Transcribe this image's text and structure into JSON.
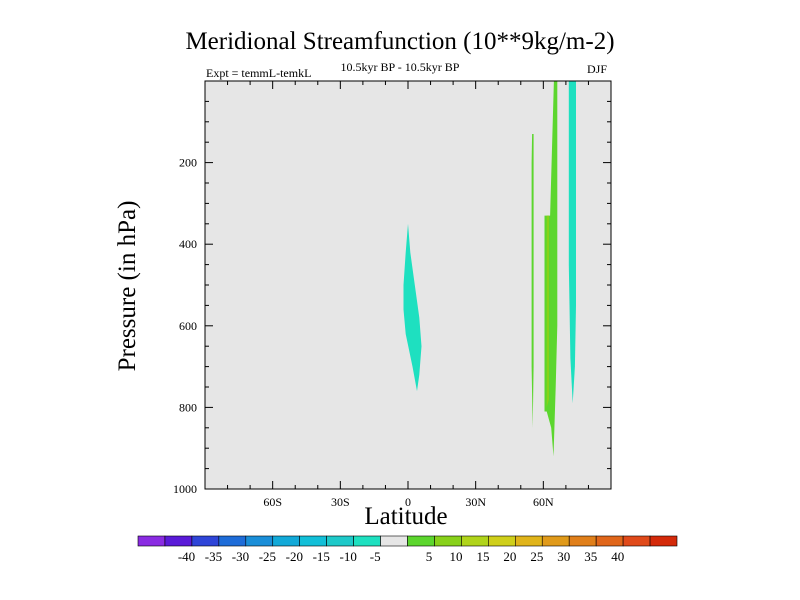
{
  "chart_data": {
    "type": "contour",
    "title": "Meridional Streamfunction (10**9kg/m-2)",
    "subtitle": "10.5kyr BP - 10.5kyr BP",
    "left_label": "Expt = temmL-temkL",
    "right_label": "DJF",
    "xlabel": "Latitude",
    "ylabel": "Pressure (in hPa)",
    "xlim": [
      -90,
      90
    ],
    "ylim": [
      1000,
      0
    ],
    "x_ticks": [
      {
        "value": -60,
        "label": "60S"
      },
      {
        "value": -30,
        "label": "30S"
      },
      {
        "value": 0,
        "label": "0"
      },
      {
        "value": 30,
        "label": "30N"
      },
      {
        "value": 60,
        "label": "60N"
      }
    ],
    "y_ticks": [
      {
        "value": 200,
        "label": "200"
      },
      {
        "value": 400,
        "label": "400"
      },
      {
        "value": 600,
        "label": "600"
      },
      {
        "value": 800,
        "label": "800"
      },
      {
        "value": 1000,
        "label": "1000"
      }
    ],
    "background_color": "#e6e6e6",
    "contour_regions": [
      {
        "name": "equatorial-cell",
        "level": "-10 to -5",
        "color": "#1ee0c0",
        "points": [
          [
            0,
            350
          ],
          [
            1,
            420
          ],
          [
            3,
            500
          ],
          [
            5,
            580
          ],
          [
            6,
            650
          ],
          [
            5,
            720
          ],
          [
            4,
            760
          ],
          [
            2,
            700
          ],
          [
            -1,
            620
          ],
          [
            -2,
            560
          ],
          [
            -2,
            500
          ],
          [
            -1,
            420
          ]
        ]
      },
      {
        "name": "highlat-thin-green",
        "level": "5 to 10",
        "color": "#5cd62e",
        "points": [
          [
            55,
            130
          ],
          [
            55.7,
            130
          ],
          [
            55.7,
            700
          ],
          [
            55.3,
            850
          ],
          [
            54.8,
            700
          ],
          [
            54.8,
            200
          ]
        ]
      },
      {
        "name": "highlat-green-a",
        "level": "5 to 10",
        "color": "#5cd62e",
        "points": [
          [
            60.5,
            330
          ],
          [
            63,
            330
          ],
          [
            64.7,
            0
          ],
          [
            66.2,
            0
          ],
          [
            66.2,
            600
          ],
          [
            65.5,
            750
          ],
          [
            64.5,
            920
          ],
          [
            63.5,
            850
          ],
          [
            61.5,
            810
          ],
          [
            60.5,
            810
          ],
          [
            60.5,
            500
          ]
        ]
      },
      {
        "name": "highlat-green-b",
        "level": "10 to 15",
        "color": "#88d11a",
        "points": [
          [
            61.5,
            330
          ],
          [
            62.5,
            330
          ],
          [
            62.5,
            780
          ],
          [
            61.5,
            800
          ]
        ]
      },
      {
        "name": "highlat-cyan",
        "level": "-10 to -5",
        "color": "#1ee0c0",
        "points": [
          [
            71.3,
            0
          ],
          [
            74.5,
            0
          ],
          [
            74.5,
            550
          ],
          [
            74,
            700
          ],
          [
            73,
            790
          ],
          [
            72,
            680
          ],
          [
            71.3,
            450
          ]
        ]
      }
    ],
    "colorbar": {
      "colors": [
        "#8a2be2",
        "#5a1ad8",
        "#2f45d8",
        "#1e6cd8",
        "#1a8ed8",
        "#12a9d8",
        "#12bfd8",
        "#1ec9c9",
        "#1ee0c0",
        "#e6e6e6",
        "#5cd62e",
        "#88d11a",
        "#b0d41a",
        "#cfcf1a",
        "#e0b41a",
        "#e09a1a",
        "#e07f1a",
        "#e0661a",
        "#e04a1a",
        "#d42a0a"
      ],
      "labels": [
        "-40",
        "-35",
        "-30",
        "-25",
        "-20",
        "-15",
        "-10",
        "-5",
        "5",
        "10",
        "15",
        "20",
        "25",
        "30",
        "35",
        "40"
      ]
    }
  }
}
